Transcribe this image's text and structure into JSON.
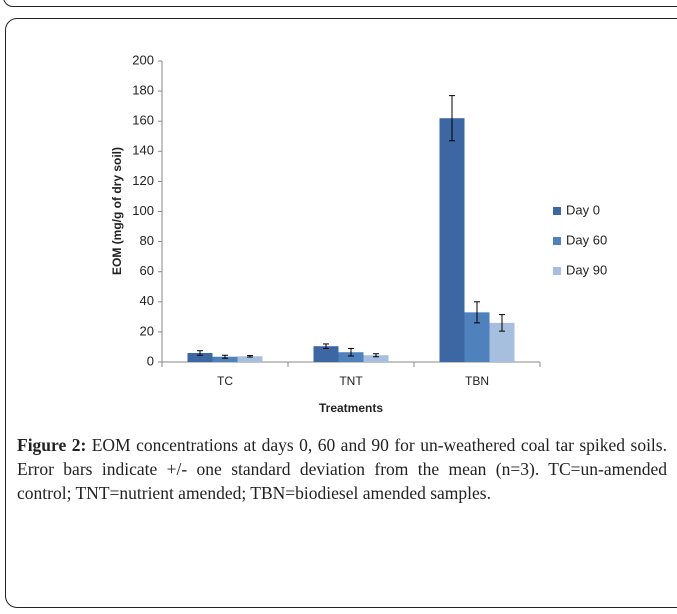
{
  "chart_data": {
    "type": "bar",
    "y_label": "EOM (mg/g of dry soil)",
    "x_label": "Treatments",
    "categories": [
      "TC",
      "TNT",
      "TBN"
    ],
    "series": [
      {
        "name": "Day 0",
        "color": "#3d67a3",
        "values": [
          6,
          10.5,
          162
        ],
        "errors": [
          1.5,
          1.5,
          15
        ]
      },
      {
        "name": "Day 60",
        "color": "#4f81bd",
        "values": [
          3.5,
          6.5,
          33
        ],
        "errors": [
          1,
          2.5,
          7
        ]
      },
      {
        "name": "Day 90",
        "color": "#a7bfde",
        "values": [
          3.8,
          4.5,
          26
        ],
        "errors": [
          0.5,
          1,
          5.5
        ]
      }
    ],
    "ylim": [
      0,
      200
    ],
    "yticks": [
      0,
      20,
      40,
      60,
      80,
      100,
      120,
      140,
      160,
      180,
      200
    ],
    "grid": false,
    "legend": "right"
  },
  "caption": {
    "label": "Figure 2:",
    "text": " EOM concentrations at days 0, 60 and 90 for un-weathered coal tar spiked soils. Error bars indicate +/- one standard deviation from the mean (n=3). TC=un-amended control; TNT=nutrient amended; TBN=biodiesel amended samples."
  }
}
